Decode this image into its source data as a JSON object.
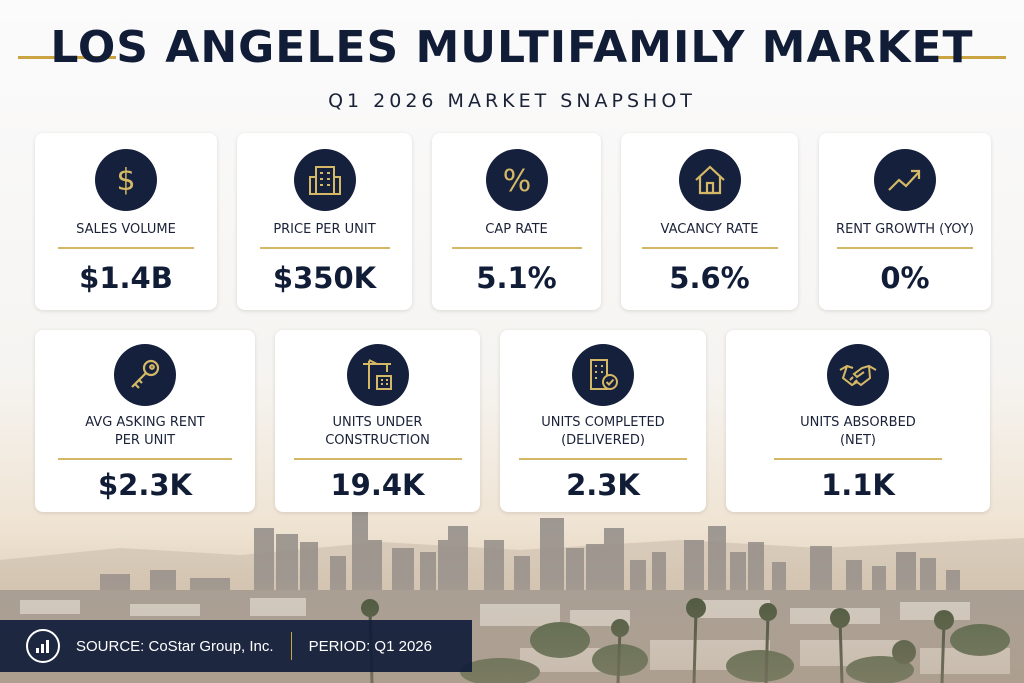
{
  "header": {
    "title": "LOS ANGELES MULTIFAMILY MARKET",
    "subtitle": "Q1 2026 MARKET SNAPSHOT"
  },
  "colors": {
    "navy": "#14203c",
    "gold": "#c9a441",
    "card": "#ffffff"
  },
  "metrics_row1": [
    {
      "icon": "dollar-icon",
      "label": "SALES VOLUME",
      "value": "$1.4B"
    },
    {
      "icon": "building-icon",
      "label": "PRICE PER UNIT",
      "value": "$350K"
    },
    {
      "icon": "percent-icon",
      "label": "CAP RATE",
      "value": "5.1%"
    },
    {
      "icon": "house-icon",
      "label": "VACANCY RATE",
      "value": "5.6%"
    },
    {
      "icon": "trend-up-icon",
      "label": "RENT GROWTH (YOY)",
      "value": "0%"
    }
  ],
  "metrics_row2": [
    {
      "icon": "key-icon",
      "label_line1": "AVG ASKING RENT",
      "label_line2": "PER UNIT",
      "value": "$2.3K"
    },
    {
      "icon": "crane-icon",
      "label_line1": "UNITS UNDER",
      "label_line2": "CONSTRUCTION",
      "value": "19.4K"
    },
    {
      "icon": "building-check-icon",
      "label_line1": "UNITS COMPLETED",
      "label_line2": "(DELIVERED)",
      "value": "2.3K"
    },
    {
      "icon": "handshake-icon",
      "label_line1": "UNITS ABSORBED",
      "label_line2": "(NET)",
      "value": "1.1K"
    }
  ],
  "footer": {
    "icon": "chart-icon",
    "source": "SOURCE: CoStar Group, Inc.",
    "period": "PERIOD: Q1 2026"
  }
}
